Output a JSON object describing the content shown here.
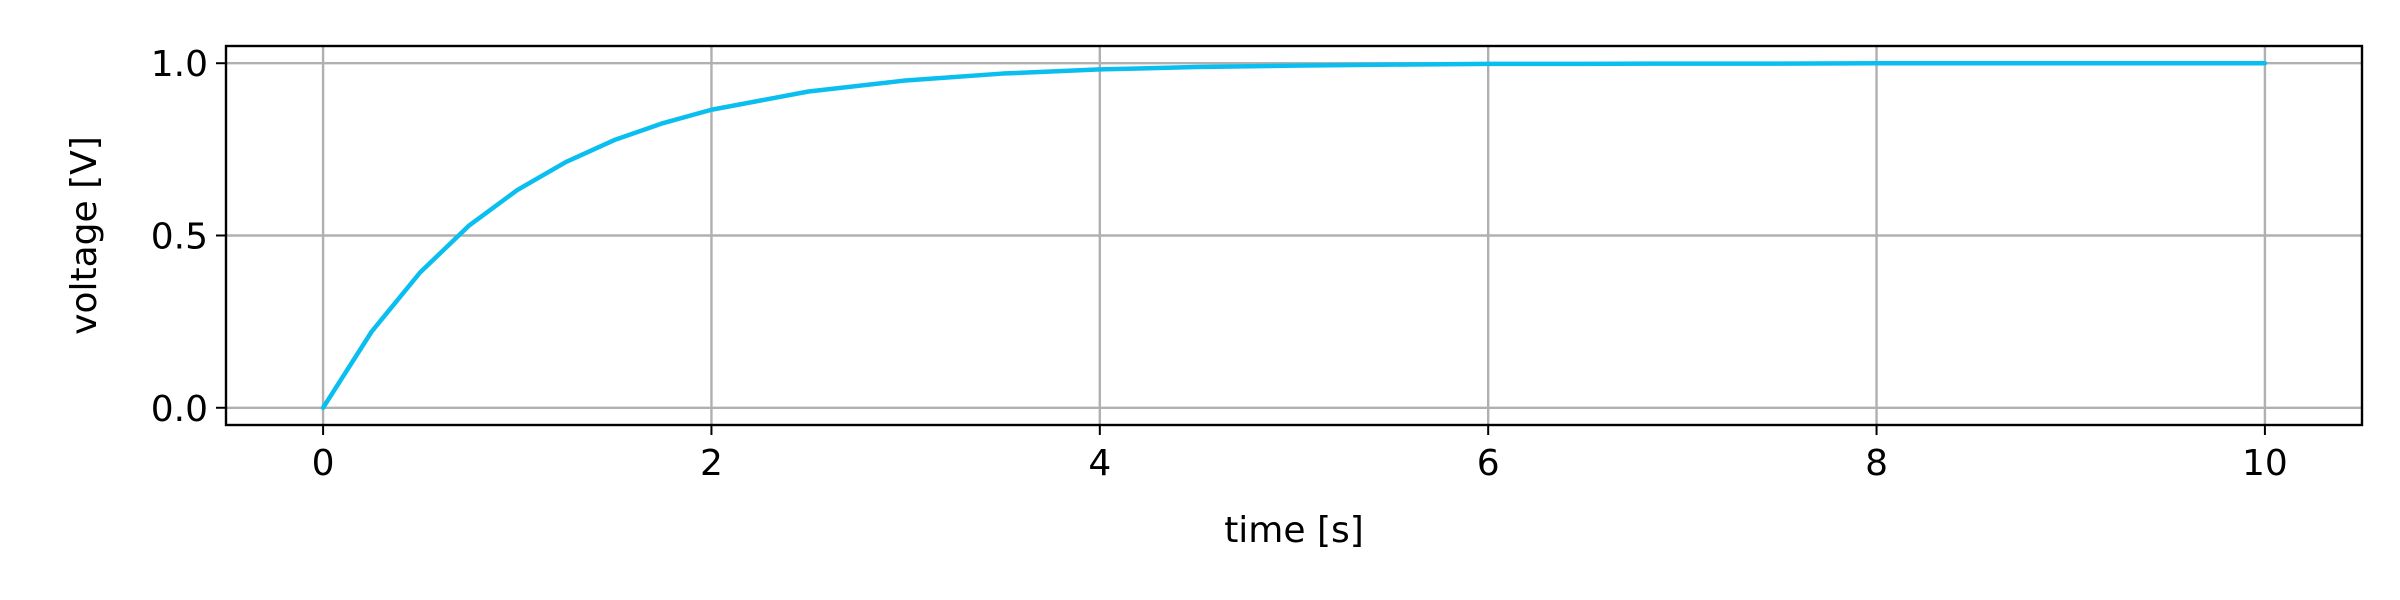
{
  "chart_data": {
    "type": "line",
    "title": "",
    "xlabel": "time [s]",
    "ylabel": "voltage [V]",
    "xlim": [
      -0.5,
      10.5
    ],
    "ylim": [
      -0.05,
      1.05
    ],
    "x_ticks": [
      0,
      2,
      4,
      6,
      8,
      10
    ],
    "x_tick_labels": [
      "0",
      "2",
      "4",
      "6",
      "8",
      "10"
    ],
    "y_ticks": [
      0.0,
      0.5,
      1.0
    ],
    "y_tick_labels": [
      "0.0",
      "0.5",
      "1.0"
    ],
    "grid": true,
    "series": [
      {
        "color": "#0abff0",
        "x": [
          0,
          0.25,
          0.5,
          0.75,
          1,
          1.25,
          1.5,
          1.75,
          2,
          2.5,
          3,
          3.5,
          4,
          4.5,
          5,
          5.5,
          6,
          6.5,
          7,
          7.5,
          8,
          8.5,
          9,
          9.5,
          10
        ],
        "y": [
          0,
          0.221,
          0.393,
          0.528,
          0.632,
          0.713,
          0.777,
          0.826,
          0.865,
          0.918,
          0.95,
          0.97,
          0.982,
          0.989,
          0.993,
          0.996,
          0.998,
          0.998,
          0.999,
          0.999,
          1.0,
          1.0,
          1.0,
          1.0,
          1.0
        ]
      }
    ]
  }
}
